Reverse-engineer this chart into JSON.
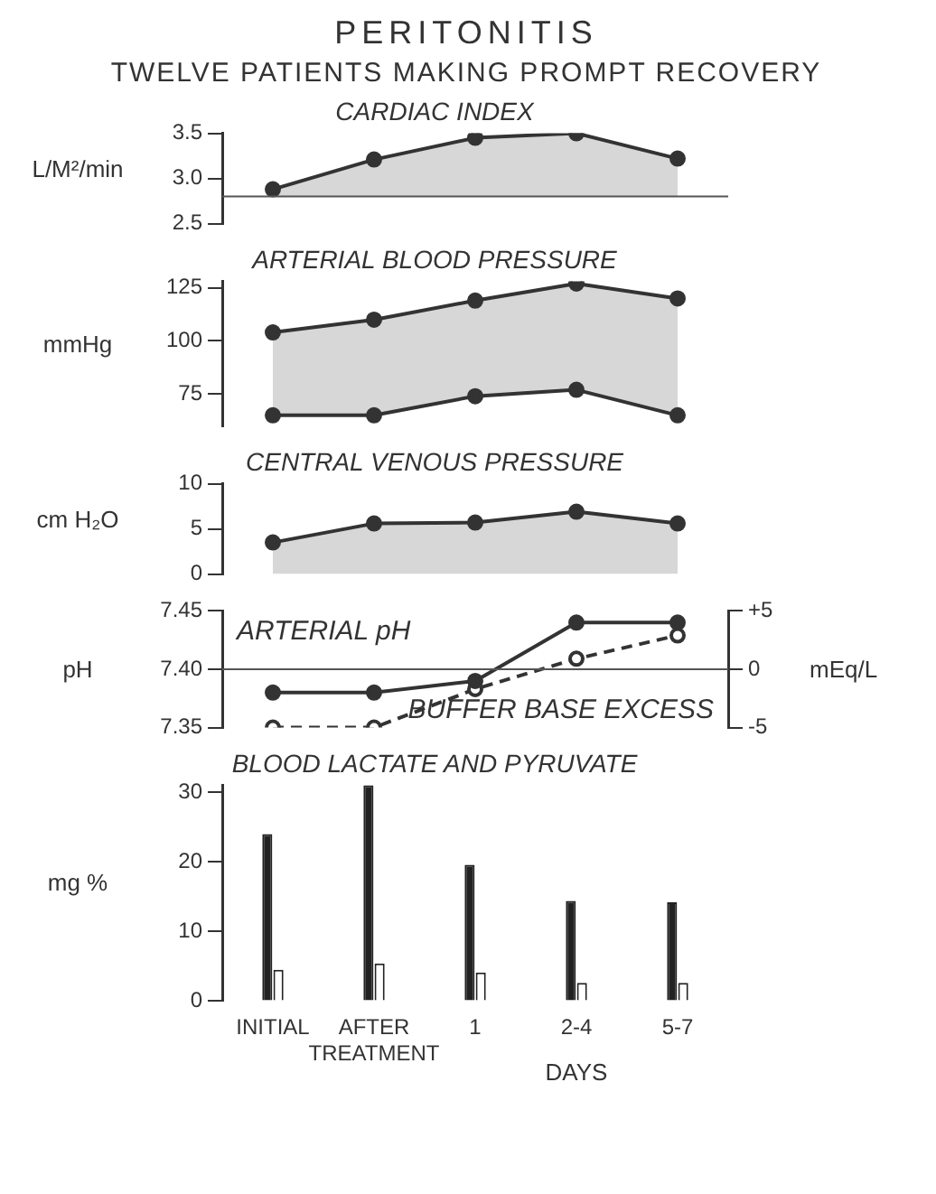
{
  "chart_data": [
    {
      "type": "other",
      "title": "PERITONITIS",
      "subtitle": "TWELVE PATIENTS MAKING PROMPT RECOVERY"
    },
    {
      "type": "area",
      "title": "CARDIAC INDEX",
      "ylabel": "L/M²/min",
      "categories": [
        null,
        null,
        null,
        null,
        null
      ],
      "series": [
        {
          "color": "#333333",
          "values": [
            2.88,
            3.21,
            3.45,
            3.5,
            3.22
          ]
        }
      ],
      "ylim": [
        2.5,
        3.5
      ],
      "yticks": [
        2.5,
        {
          "value": 3,
          "label": "3.0"
        },
        3.5
      ],
      "ref_lines": [
        {
          "axis": "y",
          "value": 2.8
        }
      ],
      "grid": false,
      "tick_labels": "y",
      "marker": "circle"
    },
    {
      "type": "area",
      "title": "ARTERIAL BLOOD PRESSURE",
      "ylabel": "mmHg",
      "categories": [
        null,
        null,
        null,
        null,
        null
      ],
      "series": [
        {
          "type": "line",
          "color": "#333333",
          "values": [
            65,
            65,
            74,
            77,
            65
          ]
        },
        {
          "color": "#333333",
          "values": [
            104,
            110,
            119,
            127,
            120
          ]
        }
      ],
      "ylim": [
        60,
        128
      ],
      "yticks": [
        75,
        100,
        125
      ],
      "grid": false,
      "tick_labels": "y",
      "marker": "circle"
    },
    {
      "type": "area",
      "title": "CENTRAL VENOUS PRESSURE",
      "ylabel": "cm H₂O",
      "categories": [
        null,
        null,
        null,
        null,
        null
      ],
      "series": [
        {
          "color": "#333333",
          "values": [
            3.5,
            5.6,
            5.7,
            6.9,
            5.6
          ]
        }
      ],
      "ylim": [
        0,
        10
      ],
      "yticks": [
        0,
        5,
        10
      ],
      "grid": false,
      "tick_labels": "y",
      "marker": "circle"
    },
    {
      "type": "line",
      "ylabel": "pH",
      "y2label": "mEq/L",
      "categories": [
        null,
        null,
        null,
        null,
        null
      ],
      "series": [
        {
          "name": "ARTERIAL pH",
          "color": "#333333",
          "values": [
            7.38,
            7.38,
            7.39,
            7.44,
            7.44
          ]
        },
        {
          "name": "BUFFER BASE EXCESS",
          "color": "#333333",
          "axis": "y2",
          "line_style": "dashed",
          "values": [
            -5,
            -5,
            -1.7,
            0.9,
            2.9
          ]
        }
      ],
      "ylim": [
        7.35,
        7.45
      ],
      "yticks": [
        7.35,
        {
          "value": 7.4,
          "label": "7.40"
        },
        7.45
      ],
      "y2lim": [
        -5,
        5
      ],
      "y2ticks": [
        -5,
        0,
        {
          "value": 5,
          "label": "+5"
        }
      ],
      "ref_lines": [
        {
          "axis": "y",
          "value": 7.4
        }
      ],
      "grid": false,
      "tick_labels": "y",
      "marker": "circle"
    },
    {
      "type": "bar",
      "title": "BLOOD LACTATE AND PYRUVATE",
      "ylabel": "mg %",
      "categories": [
        "INITIAL",
        "AFTER TREATMENT",
        "1",
        "2-4",
        "5-7"
      ],
      "series": [
        {
          "color": "#222222",
          "values": [
            24,
            31,
            19.6,
            14.4,
            14.2
          ]
        },
        {
          "color": "#ffffff",
          "values": [
            4.5,
            5.4,
            4.1,
            2.6,
            2.6
          ]
        }
      ],
      "ylim": [
        0,
        31
      ],
      "yticks": [
        0,
        10,
        20,
        30
      ],
      "grid": false,
      "annotations": [
        "DAYS"
      ]
    }
  ]
}
